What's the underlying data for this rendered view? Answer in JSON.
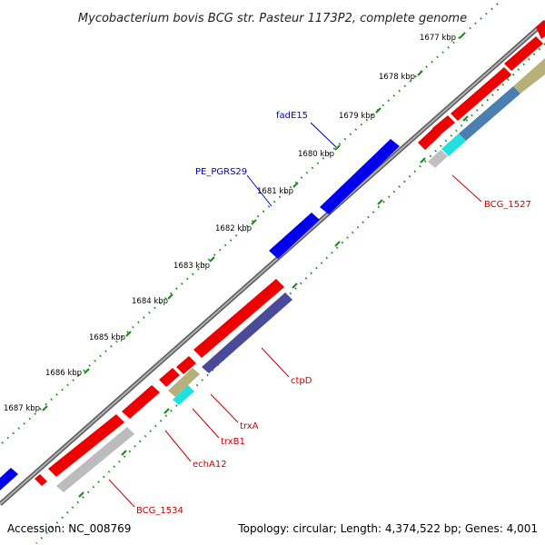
{
  "title": "Mycobacterium bovis BCG str. Pasteur 1173P2, complete genome",
  "footer": {
    "accession": "Accession: NC_008769",
    "summary": "Topology: circular; Length: 4,374,522 bp; Genes: 4,001"
  },
  "colors": {
    "backbone": "#808080",
    "tick": "#228B22",
    "forward_cds": "#0000ee",
    "reverse_cds": "#ee0000",
    "feature_label_forward": "#0000cc",
    "feature_label_reverse": "#cc0000",
    "scale_label": "#000000"
  },
  "scale_labels": [
    "1677 kbp",
    "1678 kbp",
    "1679 kbp",
    "1680 kbp",
    "1681 kbp",
    "1682 kbp",
    "1683 kbp",
    "1684 kbp",
    "1685 kbp",
    "1686 kbp",
    "1687 kbp"
  ],
  "feature_labels": [
    {
      "text": "fadE15",
      "strand": "forward"
    },
    {
      "text": "PE_PGRS29",
      "strand": "forward"
    },
    {
      "text": "BCG_1527",
      "strand": "reverse"
    },
    {
      "text": "ctpD",
      "strand": "reverse"
    },
    {
      "text": "trxA",
      "strand": "reverse"
    },
    {
      "text": "trxB1",
      "strand": "reverse"
    },
    {
      "text": "echA12",
      "strand": "reverse"
    },
    {
      "text": "BCG_1534",
      "strand": "reverse"
    }
  ]
}
